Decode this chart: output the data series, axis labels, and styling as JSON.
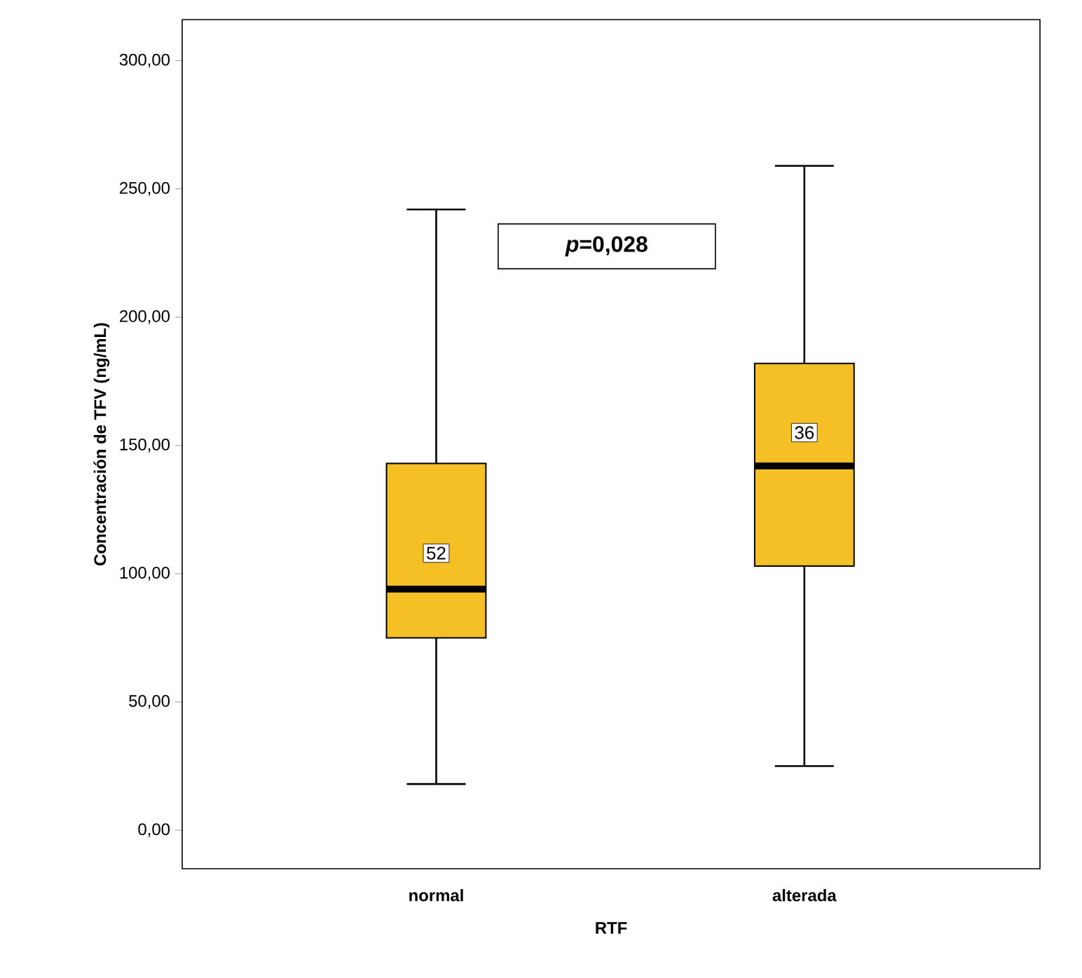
{
  "chart_data": {
    "type": "box",
    "xlabel": "RTF",
    "ylabel": "Concentración de TFV (ng/mL)",
    "categories": [
      "normal",
      "alterada"
    ],
    "color": "#f5c026",
    "boxes": [
      {
        "low": 18,
        "q1": 75,
        "median": 94,
        "q3": 143,
        "high": 242
      },
      {
        "low": 25,
        "q1": 103,
        "median": 142,
        "q3": 182,
        "high": 259
      }
    ],
    "ylim": [
      -15,
      316
    ],
    "yticks": [
      {
        "value": 0,
        "label": "0,00"
      },
      {
        "value": 50,
        "label": "50,00"
      },
      {
        "value": 100,
        "label": "100,00"
      },
      {
        "value": 150,
        "label": "150,00"
      },
      {
        "value": 200,
        "label": "200,00"
      },
      {
        "value": 250,
        "label": "250,00"
      },
      {
        "value": 300,
        "label": "300,00"
      }
    ],
    "grid": false,
    "annotations": [
      {
        "text": "52",
        "x": "normal",
        "y": 108
      },
      {
        "text": "36",
        "x": "alterada",
        "y": 155
      },
      "*p*=0,028"
    ]
  }
}
